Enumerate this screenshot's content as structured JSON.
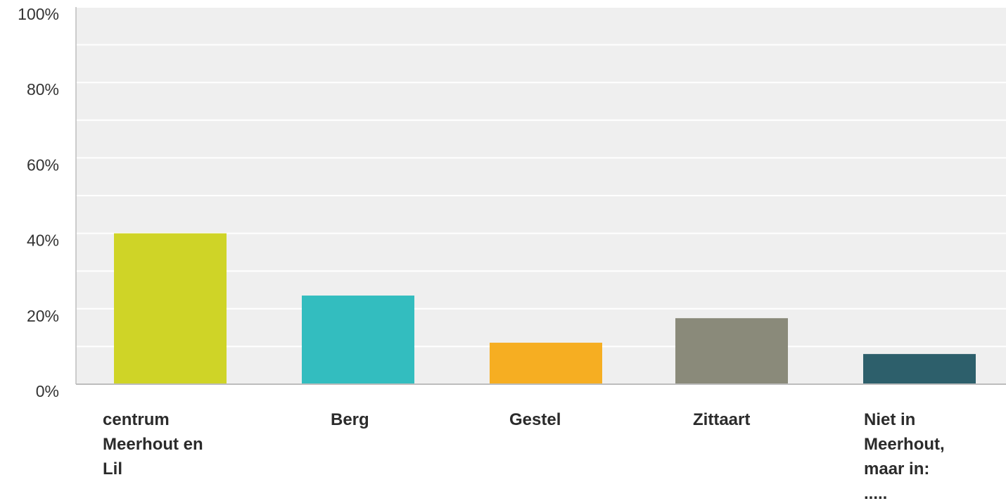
{
  "chart_data": {
    "type": "bar",
    "categories": [
      [
        "centrum",
        "Meerhout en",
        "Lil"
      ],
      [
        "Berg"
      ],
      [
        "Gestel"
      ],
      [
        "Zittaart"
      ],
      [
        "Niet in",
        "Meerhout,",
        "maar in:",
        "....."
      ]
    ],
    "values": [
      40,
      23.5,
      11,
      17.5,
      8
    ],
    "colors": [
      "#cfd427",
      "#33bdbf",
      "#f6ae22",
      "#8a8a7a",
      "#2d5f6b"
    ],
    "ylim": [
      0,
      100
    ],
    "yticks": [
      "0%",
      "20%",
      "40%",
      "60%",
      "80%",
      "100%"
    ],
    "grid": true,
    "plot_background": "#efefef",
    "legend": "none"
  }
}
